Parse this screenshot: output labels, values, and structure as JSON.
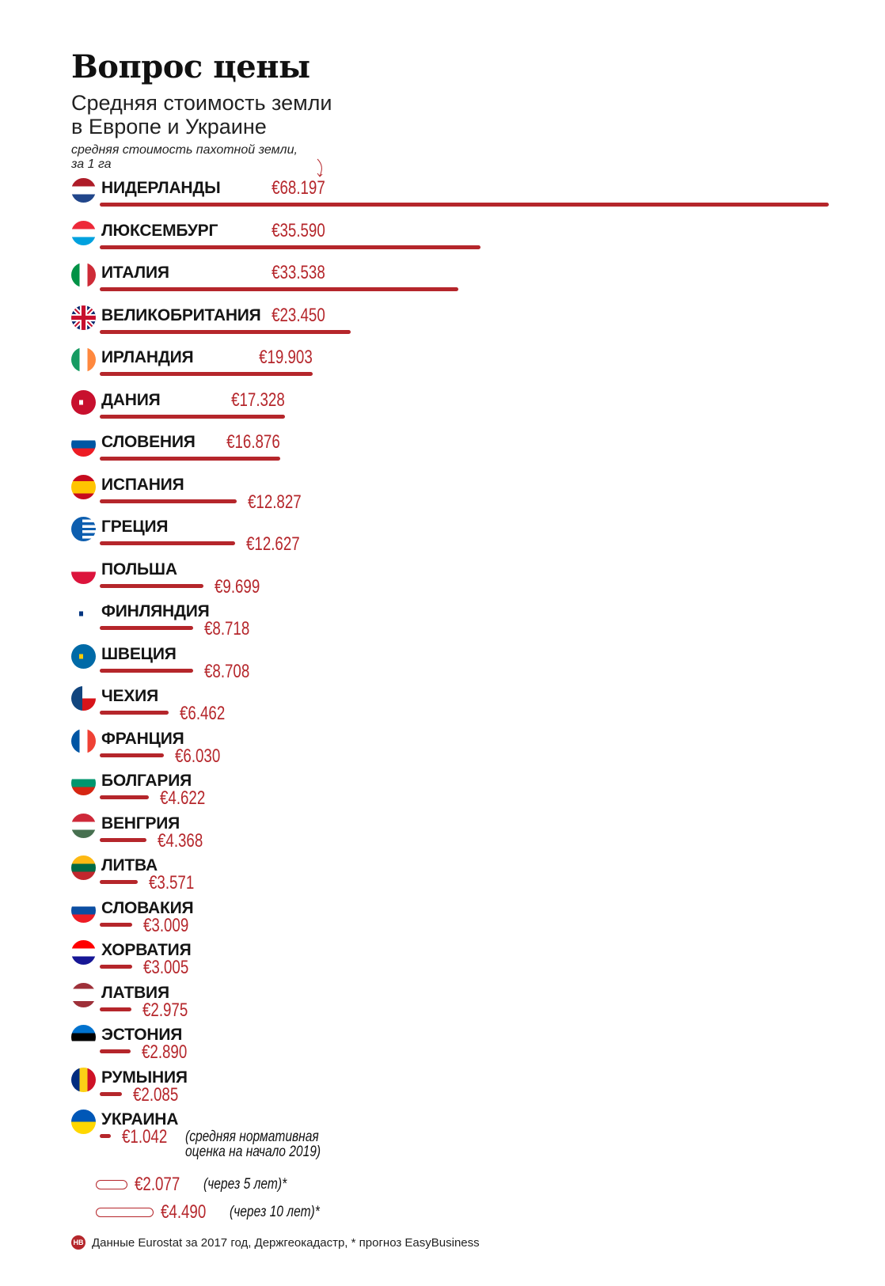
{
  "title": "Вопрос цены",
  "subtitle_line1": "Средняя стоимость земли",
  "subtitle_line2": "в Европе и Украине",
  "note_line1": "средняя стоимость пахотной земли,",
  "note_line2": "за 1 га",
  "footer": {
    "logo": "НВ",
    "text": "Данные Eurostat за 2017 год, Держгеокадастр, * прогноз EasyBusiness"
  },
  "colors": {
    "accent": "#b5262b"
  },
  "chart_data": {
    "type": "bar",
    "orientation": "horizontal",
    "title": "Вопрос цены",
    "unit": "€ за 1 га",
    "categories": [
      "НИДЕРЛАНДЫ",
      "ЛЮКСЕМБУРГ",
      "ИТАЛИЯ",
      "ВЕЛИКОБРИТАНИЯ",
      "ИРЛАНДИЯ",
      "ДАНИЯ",
      "СЛОВЕНИЯ",
      "ИСПАНИЯ",
      "ГРЕЦИЯ",
      "ПОЛЬША",
      "ФИНЛЯНДИЯ",
      "ШВЕЦИЯ",
      "ЧЕХИЯ",
      "ФРАНЦИЯ",
      "БОЛГАРИЯ",
      "ВЕНГРИЯ",
      "ЛИТВА",
      "СЛОВАКИЯ",
      "ХОРВАТИЯ",
      "ЛАТВИЯ",
      "ЭСТОНИЯ",
      "РУМЫНИЯ",
      "УКРАИНА"
    ],
    "values": [
      68197,
      35590,
      33538,
      23450,
      19903,
      17328,
      16876,
      12827,
      12627,
      9699,
      8718,
      8708,
      6462,
      6030,
      4622,
      4368,
      3571,
      3009,
      3005,
      2975,
      2890,
      2085,
      1042
    ],
    "labels": [
      "€68.197",
      "€35.590",
      "€33.538",
      "€23.450",
      "€19.903",
      "€17.328",
      "€16.876",
      "€12.827",
      "€12.627",
      "€9.699",
      "€8.718",
      "€8.708",
      "€6.462",
      "€6.030",
      "€4.622",
      "€4.368",
      "€3.571",
      "€3.009",
      "€3.005",
      "€2.975",
      "€2.890",
      "€2.085",
      "€1.042"
    ],
    "flags": [
      {
        "type": "h",
        "colors": [
          "#ae1c28",
          "#ffffff",
          "#21468b"
        ]
      },
      {
        "type": "h",
        "colors": [
          "#ed2939",
          "#ffffff",
          "#00a1de"
        ]
      },
      {
        "type": "v",
        "colors": [
          "#009246",
          "#ffffff",
          "#ce2b37"
        ]
      },
      {
        "type": "uk",
        "colors": [
          "#012169",
          "#ffffff",
          "#c8102e"
        ]
      },
      {
        "type": "v",
        "colors": [
          "#169b62",
          "#ffffff",
          "#ff883e"
        ]
      },
      {
        "type": "cross",
        "colors": [
          "#c8102e",
          "#ffffff"
        ]
      },
      {
        "type": "h",
        "colors": [
          "#ffffff",
          "#0056a3",
          "#ed1c24"
        ]
      },
      {
        "type": "h3",
        "colors": [
          "#c60b1e",
          "#ffc400",
          "#c60b1e"
        ]
      },
      {
        "type": "stripes",
        "colors": [
          "#0d5eaf",
          "#ffffff"
        ]
      },
      {
        "type": "h2",
        "colors": [
          "#ffffff",
          "#dc143c"
        ]
      },
      {
        "type": "cross",
        "colors": [
          "#ffffff",
          "#003580"
        ]
      },
      {
        "type": "cross",
        "colors": [
          "#006aa7",
          "#fecc00"
        ]
      },
      {
        "type": "cz",
        "colors": [
          "#ffffff",
          "#d7141a",
          "#11457e"
        ]
      },
      {
        "type": "v",
        "colors": [
          "#0055a4",
          "#ffffff",
          "#ef4135"
        ]
      },
      {
        "type": "h",
        "colors": [
          "#ffffff",
          "#00966e",
          "#d62612"
        ]
      },
      {
        "type": "h",
        "colors": [
          "#ce2939",
          "#ffffff",
          "#477050"
        ]
      },
      {
        "type": "h",
        "colors": [
          "#fdb913",
          "#006a44",
          "#c1272d"
        ]
      },
      {
        "type": "h",
        "colors": [
          "#ffffff",
          "#0b4ea2",
          "#ee1c25"
        ]
      },
      {
        "type": "h",
        "colors": [
          "#ff0000",
          "#ffffff",
          "#171796"
        ]
      },
      {
        "type": "h3",
        "colors": [
          "#9e3039",
          "#ffffff",
          "#9e3039"
        ]
      },
      {
        "type": "h",
        "colors": [
          "#0072ce",
          "#000000",
          "#ffffff"
        ]
      },
      {
        "type": "v",
        "colors": [
          "#002b7f",
          "#fcd116",
          "#ce1126"
        ]
      },
      {
        "type": "h2",
        "colors": [
          "#0057b7",
          "#ffd700"
        ]
      }
    ],
    "forecasts": [
      {
        "value": 2077,
        "label": "€2.077",
        "note": "(через 5 лет)*"
      },
      {
        "value": 4490,
        "label": "€4.490",
        "note": "(через 10 лет)*"
      }
    ],
    "ukraine_note_line1": "(средняя нормативная",
    "ukraine_note_line2": "оценка на начало 2019)"
  }
}
